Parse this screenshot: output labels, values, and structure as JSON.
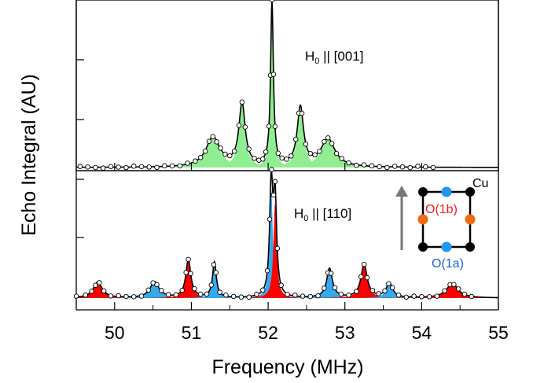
{
  "chart_data": [
    {
      "type": "area",
      "panel": "top",
      "annotation": {
        "main": "H",
        "sub": "0",
        "rest": " || [001]"
      },
      "peaks": [
        {
          "x": 51.28,
          "height": 0.18,
          "width": 0.11
        },
        {
          "x": 51.66,
          "height": 0.38,
          "width": 0.05
        },
        {
          "x": 52.05,
          "height": 1.0,
          "width": 0.022
        },
        {
          "x": 52.42,
          "height": 0.36,
          "width": 0.05
        },
        {
          "x": 52.78,
          "height": 0.17,
          "width": 0.11
        }
      ],
      "points_x": [
        49.55,
        49.65,
        49.75,
        49.85,
        49.95,
        50.05,
        50.15,
        50.25,
        50.35,
        50.45,
        50.55,
        50.65,
        50.75,
        50.85,
        50.95,
        51.05,
        51.12,
        51.18,
        51.23,
        51.28,
        51.33,
        51.38,
        51.44,
        51.5,
        51.56,
        51.62,
        51.66,
        51.7,
        51.75,
        51.82,
        51.88,
        51.93,
        51.97,
        52.01,
        52.03,
        52.05,
        52.07,
        52.09,
        52.13,
        52.18,
        52.24,
        52.3,
        52.36,
        52.4,
        52.44,
        52.49,
        52.55,
        52.61,
        52.67,
        52.73,
        52.78,
        52.83,
        52.89,
        52.96,
        53.05,
        53.15,
        53.25,
        53.35,
        53.45,
        53.55,
        53.65,
        53.75,
        53.85,
        53.95,
        54.05,
        54.15
      ]
    },
    {
      "type": "area",
      "panel": "bottom",
      "annotation": {
        "main": "H",
        "sub": "0",
        "rest": " || [110]"
      },
      "peaks": [
        {
          "x": 49.78,
          "height": 0.13,
          "width": 0.07,
          "series": "O(1b)"
        },
        {
          "x": 50.52,
          "height": 0.13,
          "width": 0.07,
          "series": "O(1a)"
        },
        {
          "x": 50.96,
          "height": 0.31,
          "width": 0.04,
          "series": "O(1b)"
        },
        {
          "x": 51.3,
          "height": 0.29,
          "width": 0.03,
          "series": "O(1a)"
        },
        {
          "x": 52.04,
          "height": 0.9,
          "width": 0.025,
          "series": "O(1a)"
        },
        {
          "x": 52.09,
          "height": 0.78,
          "width": 0.025,
          "series": "O(1b)"
        },
        {
          "x": 52.8,
          "height": 0.24,
          "width": 0.045,
          "series": "O(1a)"
        },
        {
          "x": 53.25,
          "height": 0.27,
          "width": 0.05,
          "series": "O(1b)"
        },
        {
          "x": 53.58,
          "height": 0.12,
          "width": 0.05,
          "series": "O(1a)"
        },
        {
          "x": 54.4,
          "height": 0.12,
          "width": 0.09,
          "series": "O(1b)"
        }
      ],
      "points_x": [
        49.5,
        49.62,
        49.7,
        49.75,
        49.8,
        49.86,
        49.95,
        50.05,
        50.15,
        50.25,
        50.35,
        50.44,
        50.5,
        50.55,
        50.61,
        50.7,
        50.8,
        50.88,
        50.93,
        50.96,
        50.99,
        51.04,
        51.12,
        51.2,
        51.26,
        51.29,
        51.32,
        51.37,
        51.45,
        51.55,
        51.65,
        51.75,
        51.85,
        51.93,
        51.99,
        52.02,
        52.045,
        52.07,
        52.09,
        52.12,
        52.17,
        52.25,
        52.35,
        52.45,
        52.55,
        52.65,
        52.73,
        52.78,
        52.82,
        52.87,
        52.95,
        53.05,
        53.15,
        53.21,
        53.25,
        53.29,
        53.36,
        53.44,
        53.52,
        53.57,
        53.62,
        53.7,
        53.8,
        53.9,
        54.0,
        54.1,
        54.2,
        54.3,
        54.37,
        54.42,
        54.48,
        54.56,
        54.65
      ]
    }
  ],
  "axes": {
    "xlabel": "Frequency (MHz)",
    "ylabel": "Echo Integral (AU)",
    "xlim": [
      49.5,
      55
    ],
    "xticks": [
      "50",
      "51",
      "52",
      "53",
      "54",
      "55"
    ],
    "grid": false
  },
  "inset": {
    "labels": {
      "cu": "Cu",
      "o1b": "O(1b)",
      "o1a": "O(1a)"
    }
  },
  "colors": {
    "fill_top": "#90ee90",
    "fill_o1b": "#ff0000",
    "fill_o1a": "#33aaee",
    "o1b_atom": "#ee6a10",
    "o1a_atom": "#2196f3",
    "cu_atom": "#000000",
    "o1b_label": "#ee1c1c",
    "o1a_label": "#1f5fd6",
    "arrow": "#777777"
  }
}
